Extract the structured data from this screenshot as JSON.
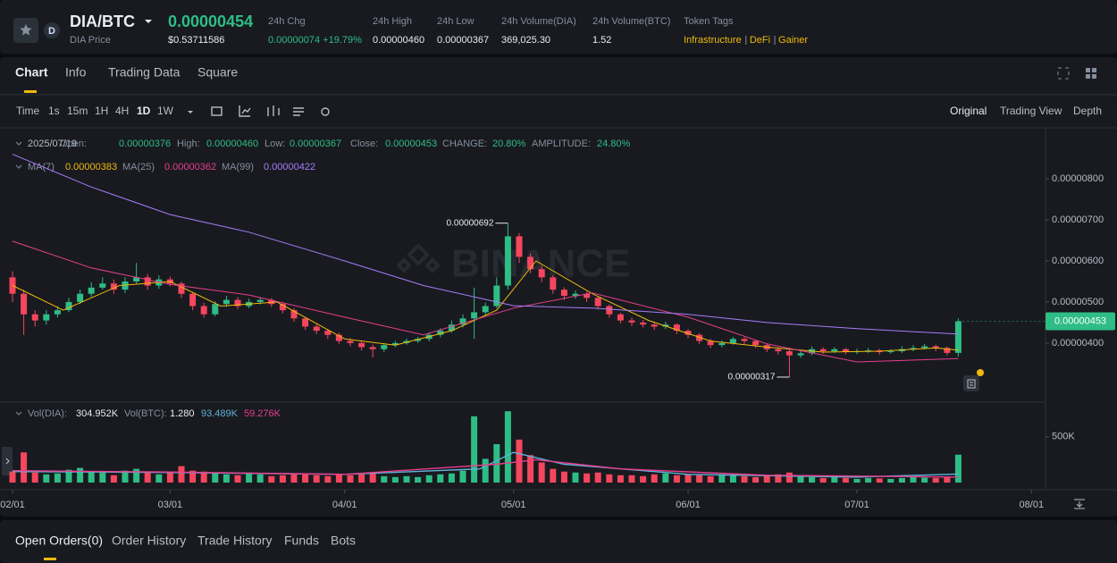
{
  "header": {
    "pair": "DIA/BTC",
    "price": "0.00000454",
    "price_label": "DIA Price",
    "usd_price": "$0.53711586",
    "stats": [
      {
        "label": "24h Chg",
        "value": "0.00000074 +19.79%"
      },
      {
        "label": "24h High",
        "value": "0.00000460"
      },
      {
        "label": "24h Low",
        "value": "0.00000367"
      },
      {
        "label": "24h Volume(DIA)",
        "value": "369,025.30"
      },
      {
        "label": "24h Volume(BTC)",
        "value": "1.52"
      }
    ],
    "tags_label": "Token Tags",
    "tags": [
      "Infrastructure",
      "DeFi",
      "Gainer"
    ]
  },
  "tabs": [
    "Chart",
    "Info",
    "Trading Data",
    "Square"
  ],
  "toolbar": {
    "intervals": [
      "Time",
      "1s",
      "15m",
      "1H",
      "4H",
      "1D",
      "1W"
    ],
    "views": [
      "Original",
      "Trading View",
      "Depth"
    ]
  },
  "ohlc_legend": {
    "date": "2025/07/19",
    "fields": [
      {
        "label": "Open:",
        "value": "0.00000376"
      },
      {
        "label": "High:",
        "value": "0.00000460"
      },
      {
        "label": "Low:",
        "value": "0.00000367"
      },
      {
        "label": "Close:",
        "value": "0.00000453"
      },
      {
        "label": "CHANGE:",
        "value": "20.80%"
      },
      {
        "label": "AMPLITUDE:",
        "value": "24.80%"
      }
    ]
  },
  "chart_data": {
    "type": "candlestick",
    "watermark": "BINANCE",
    "up_color": "#2ebd85",
    "down_color": "#f6465d",
    "x": [
      "02/01",
      "02/03",
      "02/05",
      "02/07",
      "02/09",
      "02/11",
      "02/13",
      "02/15",
      "02/17",
      "02/19",
      "02/21",
      "02/23",
      "02/25",
      "02/27",
      "03/01",
      "03/03",
      "03/05",
      "03/07",
      "03/09",
      "03/11",
      "03/13",
      "03/15",
      "03/17",
      "03/19",
      "03/21",
      "03/23",
      "03/25",
      "03/27",
      "03/29",
      "03/31",
      "04/02",
      "04/04",
      "04/06",
      "04/08",
      "04/10",
      "04/12",
      "04/14",
      "04/16",
      "04/18",
      "04/20",
      "04/22",
      "04/24",
      "04/26",
      "04/28",
      "04/30",
      "05/02",
      "05/04",
      "05/06",
      "05/08",
      "05/10",
      "05/12",
      "05/14",
      "05/16",
      "05/18",
      "05/20",
      "05/22",
      "05/24",
      "05/26",
      "05/28",
      "05/30",
      "06/01",
      "06/03",
      "06/05",
      "06/07",
      "06/09",
      "06/11",
      "06/13",
      "06/15",
      "06/17",
      "06/19",
      "06/21",
      "06/23",
      "06/25",
      "06/27",
      "06/29",
      "07/01",
      "07/03",
      "07/05",
      "07/07",
      "07/09",
      "07/11",
      "07/13",
      "07/15",
      "07/17",
      "07/19"
    ],
    "open": [
      5.6e-06,
      5.2e-06,
      4.7e-06,
      4.55e-06,
      4.7e-06,
      4.8e-06,
      5e-06,
      5.2e-06,
      5.35e-06,
      5.45e-06,
      5.3e-06,
      5.5e-06,
      5.6e-06,
      5.4e-06,
      5.55e-06,
      5.45e-06,
      5.2e-06,
      4.9e-06,
      4.7e-06,
      4.95e-06,
      5.05e-06,
      4.9e-06,
      5e-06,
      5.05e-06,
      4.95e-06,
      4.8e-06,
      4.6e-06,
      4.4e-06,
      4.3e-06,
      4.2e-06,
      4.05e-06,
      4e-06,
      3.9e-06,
      3.85e-06,
      3.95e-06,
      4e-06,
      4.05e-06,
      4.1e-06,
      4.2e-06,
      4.3e-06,
      4.45e-06,
      4.6e-06,
      4.75e-06,
      4.9e-06,
      5.4e-06,
      6.6e-06,
      6.1e-06,
      5.8e-06,
      5.6e-06,
      5.3e-06,
      5.15e-06,
      5.2e-06,
      5.1e-06,
      4.9e-06,
      4.7e-06,
      4.55e-06,
      4.5e-06,
      4.45e-06,
      4.4e-06,
      4.45e-06,
      4.3e-06,
      4.2e-06,
      4.05e-06,
      3.95e-06,
      4e-06,
      4.1e-06,
      4.05e-06,
      3.95e-06,
      3.85e-06,
      3.8e-06,
      3.7e-06,
      3.75e-06,
      3.85e-06,
      3.8e-06,
      3.85e-06,
      3.78e-06,
      3.8e-06,
      3.82e-06,
      3.78e-06,
      3.8e-06,
      3.85e-06,
      3.88e-06,
      3.92e-06,
      3.88e-06,
      3.76e-06
    ],
    "high": [
      5.75e-06,
      5.3e-06,
      4.8e-06,
      4.8e-06,
      4.9e-06,
      5.1e-06,
      5.3e-06,
      5.48e-06,
      5.6e-06,
      5.55e-06,
      5.6e-06,
      5.95e-06,
      5.68e-06,
      5.65e-06,
      5.62e-06,
      5.5e-06,
      5.25e-06,
      4.98e-06,
      5.02e-06,
      5.15e-06,
      5.12e-06,
      5.08e-06,
      5.12e-06,
      5.1e-06,
      5e-06,
      4.85e-06,
      4.64e-06,
      4.46e-06,
      4.34e-06,
      4.25e-06,
      4.12e-06,
      4.05e-06,
      3.96e-06,
      4e-06,
      4.05e-06,
      4.1e-06,
      4.15e-06,
      4.26e-06,
      4.36e-06,
      4.55e-06,
      4.7e-06,
      5.35e-06,
      4.98e-06,
      5.6e-06,
      6.92e-06,
      6.68e-06,
      6.18e-06,
      5.88e-06,
      5.65e-06,
      5.36e-06,
      5.28e-06,
      5.25e-06,
      5.14e-06,
      4.94e-06,
      4.74e-06,
      4.62e-06,
      4.56e-06,
      4.5e-06,
      4.52e-06,
      4.48e-06,
      4.34e-06,
      4.24e-06,
      4.1e-06,
      4.06e-06,
      4.15e-06,
      4.14e-06,
      4.08e-06,
      3.98e-06,
      3.9e-06,
      3.84e-06,
      3.82e-06,
      3.92e-06,
      3.9e-06,
      3.9e-06,
      3.88e-06,
      3.86e-06,
      3.88e-06,
      3.86e-06,
      3.85e-06,
      3.92e-06,
      3.95e-06,
      3.98e-06,
      3.96e-06,
      3.92e-06,
      4.6e-06
    ],
    "low": [
      5e-06,
      4.2e-06,
      4.4e-06,
      4.45e-06,
      4.62e-06,
      4.75e-06,
      4.95e-06,
      5.12e-06,
      5.3e-06,
      5.2e-06,
      5.22e-06,
      5.45e-06,
      5.3e-06,
      5.32e-06,
      5.38e-06,
      5.1e-06,
      4.8e-06,
      4.62e-06,
      4.65e-06,
      4.88e-06,
      4.82e-06,
      4.85e-06,
      4.94e-06,
      4.88e-06,
      4.72e-06,
      4.52e-06,
      4.32e-06,
      4.22e-06,
      4.1e-06,
      3.98e-06,
      3.92e-06,
      3.82e-06,
      3.65e-06,
      3.78e-06,
      3.9e-06,
      3.96e-06,
      4e-06,
      4.04e-06,
      4.14e-06,
      4.25e-06,
      4.38e-06,
      4.1e-06,
      4.68e-06,
      4.85e-06,
      5.3e-06,
      5.95e-06,
      5.7e-06,
      5.48e-06,
      5.2e-06,
      5.05e-06,
      5.08e-06,
      5e-06,
      4.82e-06,
      4.62e-06,
      4.48e-06,
      4.42e-06,
      4.38e-06,
      4.32e-06,
      4.34e-06,
      4.22e-06,
      4.12e-06,
      3.98e-06,
      3.88e-06,
      3.9e-06,
      3.96e-06,
      3.98e-06,
      3.88e-06,
      3.78e-06,
      3.72e-06,
      3.17e-06,
      3.64e-06,
      3.7e-06,
      3.74e-06,
      3.76e-06,
      3.72e-06,
      3.73e-06,
      3.76e-06,
      3.72e-06,
      3.74e-06,
      3.76e-06,
      3.8e-06,
      3.84e-06,
      3.8e-06,
      3.7e-06,
      3.67e-06
    ],
    "close": [
      5.2e-06,
      4.7e-06,
      4.55e-06,
      4.7e-06,
      4.8e-06,
      5e-06,
      5.2e-06,
      5.35e-06,
      5.45e-06,
      5.3e-06,
      5.5e-06,
      5.6e-06,
      5.4e-06,
      5.55e-06,
      5.45e-06,
      5.2e-06,
      4.9e-06,
      4.7e-06,
      4.95e-06,
      5.05e-06,
      4.9e-06,
      5e-06,
      5.05e-06,
      4.95e-06,
      4.8e-06,
      4.6e-06,
      4.4e-06,
      4.3e-06,
      4.2e-06,
      4.05e-06,
      4e-06,
      3.9e-06,
      3.85e-06,
      3.95e-06,
      4e-06,
      4.05e-06,
      4.1e-06,
      4.2e-06,
      4.3e-06,
      4.45e-06,
      4.6e-06,
      4.75e-06,
      4.9e-06,
      5.4e-06,
      6.6e-06,
      6.1e-06,
      5.8e-06,
      5.6e-06,
      5.3e-06,
      5.15e-06,
      5.2e-06,
      5.1e-06,
      4.9e-06,
      4.7e-06,
      4.55e-06,
      4.5e-06,
      4.45e-06,
      4.4e-06,
      4.45e-06,
      4.3e-06,
      4.2e-06,
      4.05e-06,
      3.95e-06,
      4e-06,
      4.1e-06,
      4.05e-06,
      3.95e-06,
      3.85e-06,
      3.8e-06,
      3.7e-06,
      3.75e-06,
      3.85e-06,
      3.8e-06,
      3.85e-06,
      3.78e-06,
      3.8e-06,
      3.82e-06,
      3.78e-06,
      3.8e-06,
      3.85e-06,
      3.88e-06,
      3.92e-06,
      3.88e-06,
      3.76e-06,
      4.53e-06
    ],
    "ylim": [
      2.56e-06,
      9.2e-06
    ],
    "yticks": [
      {
        "value": 4e-06,
        "label": "0.00000400"
      },
      {
        "value": 5e-06,
        "label": "0.00000500"
      },
      {
        "value": 6e-06,
        "label": "0.00000600"
      },
      {
        "value": 7e-06,
        "label": "0.00000700"
      },
      {
        "value": 8e-06,
        "label": "0.00000800"
      }
    ],
    "xticks": [
      "02/01",
      "03/01",
      "04/01",
      "05/01",
      "06/01",
      "07/01",
      "08/01"
    ],
    "last_price_label": "0.00000453",
    "annotations": [
      {
        "x": "04/30",
        "label": "0.00000692",
        "at": "high"
      },
      {
        "x": "06/19",
        "label": "0.00000317",
        "at": "low"
      }
    ],
    "ma": [
      {
        "name": "MA(7)",
        "color": "#f0b90b",
        "current_label": "0.00000383",
        "x": [
          "02/01",
          "02/10",
          "02/20",
          "03/01",
          "03/10",
          "03/20",
          "04/01",
          "04/10",
          "04/20",
          "04/28",
          "05/05",
          "05/15",
          "05/25",
          "06/05",
          "06/15",
          "06/25",
          "07/05",
          "07/15",
          "07/19"
        ],
        "values": [
          5.4e-06,
          4.8e-06,
          5.4e-06,
          5.5e-06,
          4.9e-06,
          5e-06,
          4.1e-06,
          3.95e-06,
          4.3e-06,
          4.8e-06,
          6e-06,
          5.2e-06,
          4.55e-06,
          4.05e-06,
          3.9e-06,
          3.78e-06,
          3.8e-06,
          3.88e-06,
          3.83e-06
        ]
      },
      {
        "name": "MA(25)",
        "color": "#e83e8c",
        "current_label": "0.00000362",
        "x": [
          "02/01",
          "02/15",
          "03/01",
          "03/15",
          "04/01",
          "04/15",
          "05/01",
          "05/15",
          "06/01",
          "06/15",
          "07/01",
          "07/19"
        ],
        "values": [
          6.48e-06,
          5.83e-06,
          5.43e-06,
          5.17e-06,
          4.63e-06,
          4.2e-06,
          4.85e-06,
          5.22e-06,
          4.63e-06,
          3.98e-06,
          3.54e-06,
          3.62e-06
        ]
      },
      {
        "name": "MA(99)",
        "color": "#a97cf8",
        "current_label": "0.00000422",
        "x": [
          "02/01",
          "02/15",
          "03/01",
          "03/15",
          "04/01",
          "04/15",
          "05/01",
          "05/15",
          "06/01",
          "06/15",
          "07/01",
          "07/19"
        ],
        "values": [
          8.6e-06,
          7.8e-06,
          7.13e-06,
          6.7e-06,
          6e-06,
          5.4e-06,
          4.91e-06,
          4.85e-06,
          4.7e-06,
          4.5e-06,
          4.35e-06,
          4.22e-06
        ]
      }
    ],
    "volume": {
      "name": "Vol(DIA):",
      "current_label": "304.952K",
      "btc_name": "Vol(BTC):",
      "btc_label": "1.280",
      "values": [
        120000,
        330000,
        110000,
        90000,
        100000,
        140000,
        160000,
        120000,
        110000,
        80000,
        130000,
        150000,
        120000,
        90000,
        110000,
        180000,
        130000,
        120000,
        100000,
        90000,
        80000,
        110000,
        90000,
        70000,
        80000,
        90000,
        100000,
        80000,
        70000,
        90000,
        80000,
        90000,
        110000,
        70000,
        60000,
        70000,
        60000,
        80000,
        90000,
        100000,
        130000,
        725000,
        260000,
        420000,
        780000,
        470000,
        300000,
        220000,
        150000,
        120000,
        110000,
        100000,
        110000,
        90000,
        80000,
        80000,
        70000,
        90000,
        100000,
        80000,
        90000,
        80000,
        70000,
        90000,
        80000,
        70000,
        60000,
        80000,
        90000,
        110000,
        70000,
        60000,
        50000,
        60000,
        50000,
        40000,
        50000,
        45000,
        40000,
        50000,
        60000,
        55000,
        50000,
        60000,
        304952
      ],
      "ylim": [
        0,
        860000
      ],
      "yticks": [
        {
          "value": 500000,
          "label": "500K"
        }
      ],
      "ma": [
        {
          "color": "#5fb3d9",
          "current_label": "93.489K",
          "x": [
            "02/01",
            "03/01",
            "04/01",
            "04/25",
            "05/01",
            "05/10",
            "06/01",
            "07/01",
            "07/19"
          ],
          "values": [
            120000,
            110000,
            90000,
            150000,
            330000,
            200000,
            90000,
            60000,
            93489
          ]
        },
        {
          "color": "#e83e8c",
          "current_label": "59.276K",
          "x": [
            "02/01",
            "03/01",
            "04/01",
            "04/28",
            "05/05",
            "05/20",
            "06/15",
            "07/19"
          ],
          "values": [
            130000,
            115000,
            90000,
            200000,
            250000,
            150000,
            80000,
            59276
          ]
        }
      ]
    }
  },
  "bottom_tabs": [
    "Open Orders(0)",
    "Order History",
    "Trade History",
    "Funds",
    "Bots"
  ]
}
